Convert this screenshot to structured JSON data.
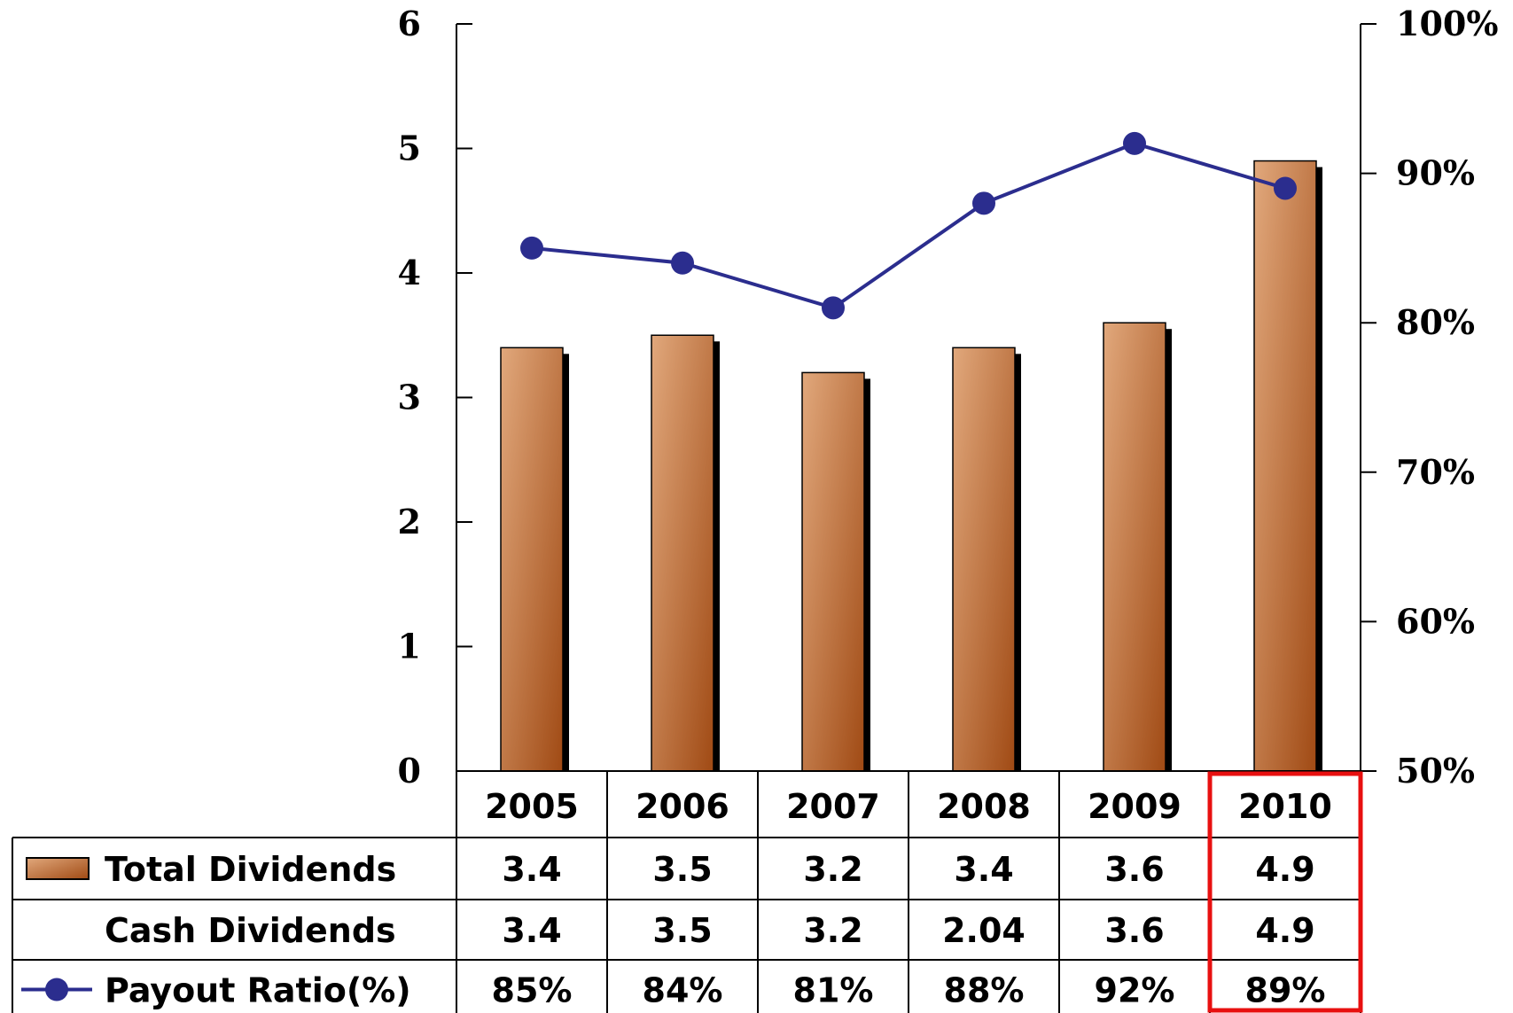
{
  "chart_data": {
    "type": "bar",
    "categories": [
      "2005",
      "2006",
      "2007",
      "2008",
      "2009",
      "2010"
    ],
    "series": [
      {
        "name": "Total Dividends",
        "type": "bar",
        "axis": "left",
        "values": [
          3.4,
          3.5,
          3.2,
          3.4,
          3.6,
          4.9
        ]
      },
      {
        "name": "Payout Ratio(%)",
        "type": "line",
        "axis": "right",
        "values": [
          85,
          84,
          81,
          88,
          92,
          89
        ]
      }
    ],
    "left_axis": {
      "ylim": [
        0,
        6
      ],
      "ticks": [
        "0",
        "1",
        "2",
        "3",
        "4",
        "5",
        "6"
      ]
    },
    "right_axis": {
      "ylim": [
        50,
        100
      ],
      "ticks": [
        "50%",
        "60%",
        "70%",
        "80%",
        "90%",
        "100%"
      ]
    },
    "table": {
      "header": [
        "2005",
        "2006",
        "2007",
        "2008",
        "2009",
        "2010"
      ],
      "rows": [
        {
          "label": "Total Dividends",
          "values": [
            "3.4",
            "3.5",
            "3.2",
            "3.4",
            "3.6",
            "4.9"
          ]
        },
        {
          "label": "Cash Dividends",
          "values": [
            "3.4",
            "3.5",
            "3.2",
            "2.04",
            "3.6",
            "4.9"
          ]
        },
        {
          "label": "Payout Ratio(%)",
          "values": [
            "85%",
            "84%",
            "81%",
            "88%",
            "92%",
            "89%"
          ]
        }
      ]
    },
    "highlighted_category": "2010",
    "colors": {
      "bar_light": "#e1a87c",
      "bar_dark": "#a04a14",
      "line": "#2b2d8e",
      "highlight": "#e81010"
    }
  }
}
